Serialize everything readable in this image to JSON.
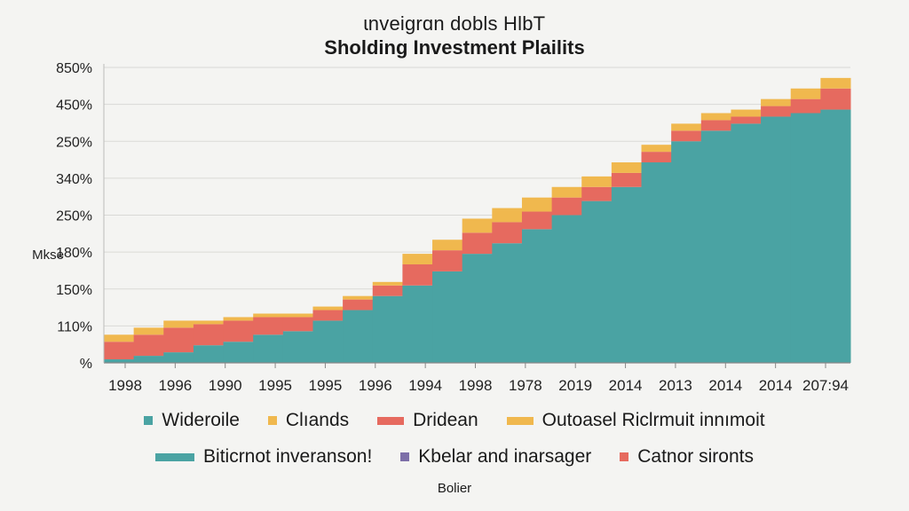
{
  "chart_data": {
    "type": "area",
    "title": "ɩnveigrɑn dobls HlbT",
    "subtitle": "Sholding Investment Plailits",
    "ylabel": "Mkse",
    "xlabel": "Bolier",
    "y_tick_labels": [
      "%",
      "110%",
      "150%",
      "180%",
      "250%",
      "340%",
      "250%",
      "450%",
      "850%"
    ],
    "x_tick_labels": [
      "1998",
      "1996",
      "1990",
      "1995",
      "1995",
      "1996",
      "1994",
      "1998",
      "1978",
      "2019",
      "2014",
      "2013",
      "2014",
      "2014",
      "207:94"
    ],
    "grid": true,
    "stacking": "stacked",
    "series": [
      {
        "name": "Wideroile",
        "color": "#4aa3a3",
        "values": [
          0.1,
          0.2,
          0.3,
          0.5,
          0.6,
          0.8,
          0.9,
          1.2,
          1.5,
          1.9,
          2.2,
          2.6,
          3.1,
          3.4,
          3.8,
          4.2,
          4.6,
          5.0,
          5.7,
          6.3,
          6.6,
          6.8,
          7.0,
          7.1,
          7.2
        ]
      },
      {
        "name": "Dridean",
        "color": "#e66a5f",
        "values": [
          0.5,
          0.6,
          0.7,
          0.6,
          0.6,
          0.5,
          0.4,
          0.3,
          0.3,
          0.3,
          0.6,
          0.6,
          0.6,
          0.6,
          0.5,
          0.5,
          0.4,
          0.4,
          0.3,
          0.3,
          0.3,
          0.2,
          0.3,
          0.4,
          0.6
        ]
      },
      {
        "name": "Clıands",
        "color": "#f0b84e",
        "values": [
          0.2,
          0.2,
          0.2,
          0.1,
          0.1,
          0.1,
          0.1,
          0.1,
          0.1,
          0.1,
          0.3,
          0.3,
          0.4,
          0.4,
          0.4,
          0.3,
          0.3,
          0.3,
          0.2,
          0.2,
          0.2,
          0.2,
          0.2,
          0.3,
          0.3
        ]
      }
    ],
    "y_max": 8.5,
    "legend": [
      {
        "label": "Wideroile",
        "color": "#4aa3a3",
        "style": "small"
      },
      {
        "label": "Clıands",
        "color": "#f0b84e",
        "style": "small"
      },
      {
        "label": "Dridean",
        "color": "#e66a5f",
        "style": "mid"
      },
      {
        "label": "Outoasel Riclrmuit innımoit",
        "color": "#f0b84e",
        "style": "mid"
      },
      {
        "label": "Biticrnot inveransonǃ",
        "color": "#4aa3a3",
        "style": "wide"
      },
      {
        "label": "Kbelar and inarsager",
        "color": "#7d6fa8",
        "style": "small"
      },
      {
        "label": "Catnor sironts",
        "color": "#e66a5f",
        "style": "small"
      }
    ],
    "legend_placement": "bottom"
  }
}
